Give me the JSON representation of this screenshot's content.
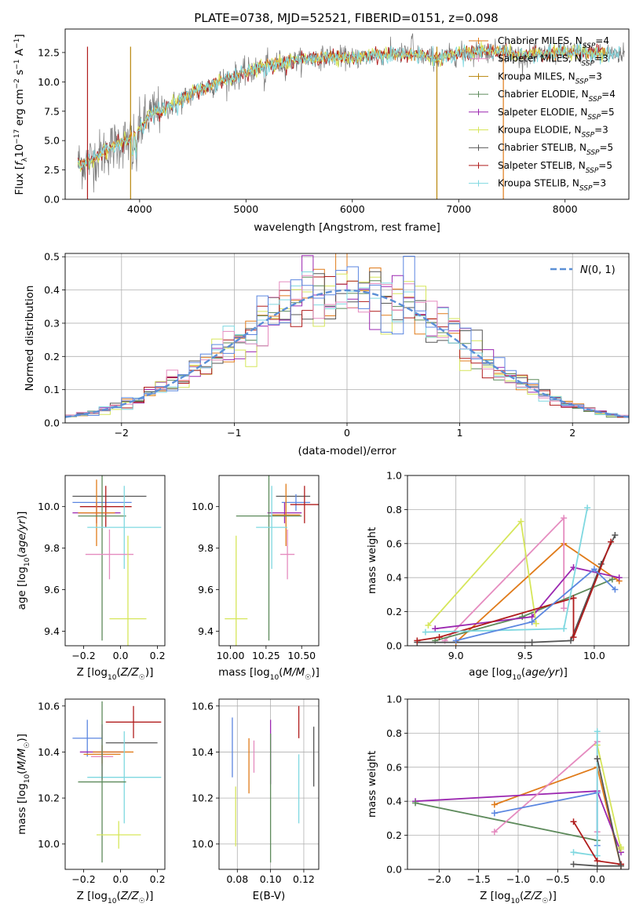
{
  "title": "PLATE=0738, MJD=52521, FIBERID=0151, z=0.098",
  "colors": [
    "#e07b1a",
    "#5d8a5b",
    "#9b27b0",
    "#d6e65a",
    "#555555",
    "#b01c1c",
    "#7fd8e0",
    "#e58bbf",
    "#5b86e0"
  ],
  "chart_data": [
    {
      "type": "line",
      "id": "spectrum",
      "title": "PLATE=0738, MJD=52521, FIBERID=0151, z=0.098",
      "xlabel": "wavelength [Angstrom, rest frame]",
      "ylabel": "Flux [f_λ 10^-17 erg cm^-2 s^-1 A^-1]",
      "xlim": [
        3300,
        8600
      ],
      "ylim": [
        0,
        14.5
      ],
      "xticks": [
        4000,
        5000,
        6000,
        7000,
        8000
      ],
      "yticks": [
        0.0,
        2.5,
        5.0,
        7.5,
        10.0,
        12.5
      ],
      "observed_anchor_x": [
        3400,
        3500,
        3600,
        3700,
        3800,
        3900,
        4000,
        4100,
        4200,
        4300,
        4400,
        4600,
        4800,
        5000,
        5200,
        5400,
        5600,
        5800,
        6000,
        6200,
        6400,
        6600,
        6800,
        7000,
        7200,
        7400,
        7600,
        7800,
        8000,
        8200,
        8400,
        8600
      ],
      "observed_anchor_y": [
        3.0,
        3.2,
        3.6,
        4.2,
        4.8,
        5.0,
        6.0,
        7.2,
        7.6,
        8.0,
        8.5,
        9.5,
        10.2,
        10.8,
        11.4,
        11.7,
        12.0,
        12.2,
        12.0,
        12.3,
        12.4,
        12.3,
        12.0,
        12.4,
        12.6,
        12.6,
        12.2,
        12.4,
        12.5,
        12.5,
        12.4,
        12.4
      ],
      "legend": [
        {
          "label": "Chabrier MILES, N_SSP=4",
          "color": "#e07b1a"
        },
        {
          "label": "Salpeter MILES, N_SSP=3",
          "color": "#e58bbf"
        },
        {
          "label": "Kroupa MILES, N_SSP=3",
          "color": "#b8860b"
        },
        {
          "label": "Chabrier ELODIE, N_SSP=4",
          "color": "#5d8a5b"
        },
        {
          "label": "Salpeter ELODIE, N_SSP=5",
          "color": "#9b27b0"
        },
        {
          "label": "Kroupa ELODIE, N_SSP=3",
          "color": "#d6e65a"
        },
        {
          "label": "Chabrier STELIB, N_SSP=5",
          "color": "#555555"
        },
        {
          "label": "Salpeter STELIB, N_SSP=5",
          "color": "#b01c1c"
        },
        {
          "label": "Kroupa STELIB, N_SSP=3",
          "color": "#7fd8e0"
        }
      ],
      "legend_position": "top-right",
      "vertical_lines": [
        {
          "x": 3510,
          "color": "#b01c1c"
        },
        {
          "x": 3915,
          "color": "#b8860b"
        },
        {
          "x": 6795,
          "color": "#b8860b"
        },
        {
          "x": 7420,
          "color": "#e07b1a"
        }
      ]
    },
    {
      "type": "histogram",
      "id": "residuals",
      "xlabel": "(data-model)/error",
      "ylabel": "Normed distribution",
      "xlim": [
        -2.5,
        2.5
      ],
      "ylim": [
        0,
        0.51
      ],
      "xticks": [
        -2,
        -1,
        0,
        1,
        2
      ],
      "yticks": [
        0.0,
        0.1,
        0.2,
        0.3,
        0.4,
        0.5
      ],
      "bin_width": 0.1,
      "legend": [
        {
          "label": "N(0,1)",
          "style": "dashed",
          "color": "#5b8fd6"
        }
      ],
      "legend_position": "top-right",
      "grid": true
    },
    {
      "type": "errorbar",
      "id": "age-vs-Z",
      "xlabel": "Z [log10(Z/Z☉)]",
      "ylabel": "age  [log10(age/yr)]",
      "xlim": [
        -0.3,
        0.24
      ],
      "ylim": [
        9.33,
        10.15
      ],
      "xticks": [
        -0.2,
        0.0,
        0.2
      ],
      "yticks": [
        9.4,
        9.6,
        9.8,
        10.0
      ],
      "points": [
        {
          "x": -0.06,
          "y": 10.05,
          "xerr": 0.2,
          "yerr": 0.0,
          "color": "#555555"
        },
        {
          "x": -0.1,
          "y": 10.02,
          "xerr": 0.16,
          "yerr": 0.0,
          "color": "#5b86e0"
        },
        {
          "x": -0.08,
          "y": 10.0,
          "xerr": 0.14,
          "yerr": 0.1,
          "color": "#b01c1c"
        },
        {
          "x": -0.13,
          "y": 9.97,
          "xerr": 0.13,
          "yerr": 0.05,
          "color": "#9b27b0"
        },
        {
          "x": -0.13,
          "y": 9.97,
          "xerr": 0.1,
          "yerr": 0.16,
          "color": "#e07b1a"
        },
        {
          "x": -0.1,
          "y": 9.955,
          "xerr": 0.13,
          "yerr": 0.6,
          "color": "#5d8a5b"
        },
        {
          "x": 0.02,
          "y": 9.9,
          "xerr": 0.2,
          "yerr": 0.2,
          "color": "#7fd8e0"
        },
        {
          "x": -0.06,
          "y": 9.77,
          "xerr": 0.13,
          "yerr": 0.12,
          "color": "#e58bbf"
        },
        {
          "x": 0.04,
          "y": 9.46,
          "xerr": 0.1,
          "yerr": 0.4,
          "color": "#d6e65a"
        }
      ]
    },
    {
      "type": "errorbar",
      "id": "age-vs-mass",
      "xlabel": "mass [log10(M/M☉)]",
      "ylabel": "",
      "xlim": [
        9.92,
        10.62
      ],
      "ylim": [
        9.33,
        10.15
      ],
      "xticks": [
        10.0,
        10.25,
        10.5
      ],
      "yticks": [
        9.4,
        9.6,
        9.8,
        10.0
      ],
      "points": [
        {
          "x": 10.44,
          "y": 10.05,
          "xerr": 0.12,
          "yerr": 0.0,
          "color": "#555555"
        },
        {
          "x": 10.46,
          "y": 10.02,
          "xerr": 0.1,
          "yerr": 0.04,
          "color": "#5b86e0"
        },
        {
          "x": 10.52,
          "y": 10.01,
          "xerr": 0.1,
          "yerr": 0.09,
          "color": "#b01c1c"
        },
        {
          "x": 10.38,
          "y": 9.97,
          "xerr": 0.12,
          "yerr": 0.05,
          "color": "#9b27b0"
        },
        {
          "x": 10.39,
          "y": 9.96,
          "xerr": 0.1,
          "yerr": 0.15,
          "color": "#e07b1a"
        },
        {
          "x": 10.27,
          "y": 9.955,
          "xerr": 0.23,
          "yerr": 0.6,
          "color": "#5d8a5b"
        },
        {
          "x": 10.29,
          "y": 9.9,
          "xerr": 0.11,
          "yerr": 0.2,
          "color": "#7fd8e0"
        },
        {
          "x": 10.4,
          "y": 9.77,
          "xerr": 0.05,
          "yerr": 0.12,
          "color": "#e58bbf"
        },
        {
          "x": 10.04,
          "y": 9.46,
          "xerr": 0.08,
          "yerr": 0.4,
          "color": "#d6e65a"
        }
      ]
    },
    {
      "type": "line",
      "id": "weight-vs-age",
      "xlabel": "age  [log10(age/yr)]",
      "ylabel": "mass weight",
      "xlim": [
        8.65,
        10.25
      ],
      "ylim": [
        0,
        1.0
      ],
      "xticks": [
        9.0,
        9.5,
        10.0
      ],
      "yticks": [
        0.0,
        0.2,
        0.4,
        0.6,
        0.8,
        1.0
      ],
      "grid": true,
      "series": [
        {
          "color": "#e07b1a",
          "x": [
            9.0,
            9.78,
            10.18
          ],
          "y": [
            0.02,
            0.6,
            0.38
          ]
        },
        {
          "color": "#e58bbf",
          "x": [
            8.92,
            9.78,
            9.78
          ],
          "y": [
            0.03,
            0.75,
            0.22
          ]
        },
        {
          "color": "#5d8a5b",
          "x": [
            8.85,
            9.48,
            10.13
          ],
          "y": [
            0.03,
            0.17,
            0.39
          ]
        },
        {
          "color": "#9b27b0",
          "x": [
            8.85,
            9.55,
            9.85,
            10.18
          ],
          "y": [
            0.1,
            0.17,
            0.46,
            0.4
          ]
        },
        {
          "color": "#d6e65a",
          "x": [
            8.8,
            9.47,
            9.58
          ],
          "y": [
            0.12,
            0.73,
            0.13
          ]
        },
        {
          "color": "#555555",
          "x": [
            8.72,
            9.55,
            9.83,
            10.05,
            10.15
          ],
          "y": [
            0.02,
            0.02,
            0.03,
            0.48,
            0.65
          ]
        },
        {
          "color": "#b01c1c",
          "x": [
            8.72,
            8.88,
            9.85,
            9.85,
            10.12
          ],
          "y": [
            0.03,
            0.05,
            0.28,
            0.05,
            0.61
          ]
        },
        {
          "color": "#7fd8e0",
          "x": [
            8.78,
            9.78,
            9.95
          ],
          "y": [
            0.08,
            0.1,
            0.81
          ]
        },
        {
          "color": "#5b86e0",
          "x": [
            9.0,
            9.55,
            10.0,
            10.15
          ],
          "y": [
            0.03,
            0.14,
            0.45,
            0.33
          ]
        }
      ]
    },
    {
      "type": "errorbar",
      "id": "mass-vs-Z",
      "xlabel": "Z [log10(Z/Z☉)]",
      "ylabel": "mass [log10(M/M☉)]",
      "xlim": [
        -0.3,
        0.24
      ],
      "ylim": [
        9.89,
        10.63
      ],
      "xticks": [
        -0.2,
        0.0,
        0.2
      ],
      "yticks": [
        10.0,
        10.2,
        10.4,
        10.6
      ],
      "points": [
        {
          "x": 0.07,
          "y": 10.53,
          "xerr": 0.15,
          "yerr": 0.07,
          "color": "#b01c1c"
        },
        {
          "x": -0.18,
          "y": 10.46,
          "xerr": 0.08,
          "yerr": 0.08,
          "color": "#5b86e0"
        },
        {
          "x": 0.06,
          "y": 10.44,
          "xerr": 0.14,
          "yerr": 0.0,
          "color": "#555555"
        },
        {
          "x": -0.1,
          "y": 10.4,
          "xerr": 0.12,
          "yerr": 0.12,
          "color": "#9b27b0"
        },
        {
          "x": -0.1,
          "y": 10.39,
          "xerr": 0.1,
          "yerr": 0.04,
          "color": "#e07b1a"
        },
        {
          "x": -0.1,
          "y": 10.38,
          "xerr": 0.06,
          "yerr": 0.04,
          "color": "#e58bbf"
        },
        {
          "x": -0.04,
          "y": 10.4,
          "xerr": 0.11,
          "yerr": 0.0,
          "color": "#e07b1a"
        },
        {
          "x": 0.02,
          "y": 10.29,
          "xerr": 0.2,
          "yerr": 0.2,
          "color": "#7fd8e0"
        },
        {
          "x": -0.1,
          "y": 10.27,
          "xerr": 0.13,
          "yerr": 0.35,
          "color": "#5d8a5b"
        },
        {
          "x": -0.01,
          "y": 10.04,
          "xerr": 0.12,
          "yerr": 0.06,
          "color": "#d6e65a"
        }
      ]
    },
    {
      "type": "errorbar",
      "id": "mass-vs-ebv",
      "xlabel": "E(B-V)",
      "ylabel": "",
      "xlim": [
        0.069,
        0.129
      ],
      "ylim": [
        9.89,
        10.63
      ],
      "xticks": [
        0.08,
        0.1,
        0.12
      ],
      "yticks": [
        10.0,
        10.2,
        10.4,
        10.6
      ],
      "grid": true,
      "points": [
        {
          "x": 0.077,
          "y": 10.42,
          "yerr": 0.13,
          "color": "#5b86e0"
        },
        {
          "x": 0.079,
          "y": 10.12,
          "yerr": 0.13,
          "color": "#d6e65a"
        },
        {
          "x": 0.087,
          "y": 10.34,
          "yerr": 0.12,
          "color": "#e07b1a"
        },
        {
          "x": 0.09,
          "y": 10.38,
          "yerr": 0.07,
          "color": "#e58bbf"
        },
        {
          "x": 0.1,
          "y": 10.4,
          "yerr": 0.14,
          "color": "#9b27b0"
        },
        {
          "x": 0.1,
          "y": 10.2,
          "yerr": 0.28,
          "color": "#5d8a5b"
        },
        {
          "x": 0.117,
          "y": 10.53,
          "yerr": 0.07,
          "color": "#b01c1c"
        },
        {
          "x": 0.117,
          "y": 10.24,
          "yerr": 0.15,
          "color": "#7fd8e0"
        },
        {
          "x": 0.126,
          "y": 10.38,
          "yerr": 0.13,
          "color": "#555555"
        }
      ]
    },
    {
      "type": "line",
      "id": "weight-vs-Z",
      "xlabel": "Z [log10(Z/Z☉)]",
      "ylabel": "mass weight",
      "xlim": [
        -2.4,
        0.4
      ],
      "ylim": [
        0,
        1.0
      ],
      "xticks": [
        -2.0,
        -1.5,
        -1.0,
        -0.5,
        0.0
      ],
      "yticks": [
        0.0,
        0.2,
        0.4,
        0.6,
        0.8,
        1.0
      ],
      "grid": true,
      "series": [
        {
          "color": "#e07b1a",
          "x": [
            -1.3,
            0.0,
            0.3
          ],
          "y": [
            0.38,
            0.6,
            0.02
          ]
        },
        {
          "color": "#9b27b0",
          "x": [
            -2.3,
            0.0,
            0.3
          ],
          "y": [
            0.4,
            0.46,
            0.1
          ]
        },
        {
          "color": "#5d8a5b",
          "x": [
            -2.3,
            0.0
          ],
          "y": [
            0.39,
            0.17
          ]
        },
        {
          "color": "#e58bbf",
          "x": [
            -1.3,
            0.0,
            0.0
          ],
          "y": [
            0.22,
            0.75,
            0.22
          ]
        },
        {
          "color": "#5b86e0",
          "x": [
            -1.3,
            0.0,
            0.0
          ],
          "y": [
            0.33,
            0.45,
            0.14
          ]
        },
        {
          "color": "#d6e65a",
          "x": [
            0.0,
            0.3,
            0.3
          ],
          "y": [
            0.73,
            0.12,
            0.13
          ]
        },
        {
          "color": "#7fd8e0",
          "x": [
            -0.3,
            0.0,
            0.0
          ],
          "y": [
            0.1,
            0.08,
            0.81
          ]
        },
        {
          "color": "#b01c1c",
          "x": [
            -0.3,
            0.0,
            0.3,
            0.3
          ],
          "y": [
            0.28,
            0.05,
            0.03,
            0.03
          ]
        },
        {
          "color": "#555555",
          "x": [
            -0.3,
            0.0,
            0.3,
            0.0
          ],
          "y": [
            0.03,
            0.02,
            0.02,
            0.65
          ]
        }
      ]
    }
  ]
}
